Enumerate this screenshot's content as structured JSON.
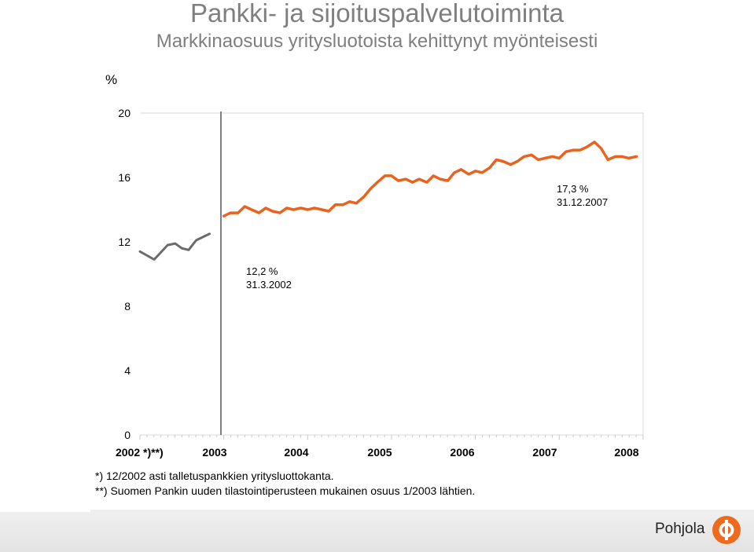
{
  "chart_data": {
    "type": "line",
    "title": "Pankki- ja sijoituspalvelutoiminta",
    "subtitle": "Markkinaosuus yritysluotoista kehittynyt myönteisesti",
    "ylabel": "%",
    "ylim": [
      0,
      20
    ],
    "yticks": [
      "0",
      "4",
      "8",
      "12",
      "16",
      "20"
    ],
    "xtick_labels": [
      "2002 *)**)",
      "2003",
      "2004",
      "2005",
      "2006",
      "2007",
      "2008"
    ],
    "xlim": [
      2002.0,
      2008.0
    ],
    "grid": false,
    "colors": {
      "series_2002": "#6b6b6b",
      "series_2003_2008": "#e8641e",
      "divider": "#7f7f7f"
    },
    "series": [
      {
        "x": [
          2002.0,
          2002.17,
          2002.33,
          2002.42,
          2002.5,
          2002.58,
          2002.67,
          2002.83
        ],
        "values": [
          11.4,
          10.9,
          11.8,
          11.9,
          11.6,
          11.5,
          12.1,
          12.5
        ]
      },
      {
        "x": [
          2003.0,
          2003.08,
          2003.17,
          2003.25,
          2003.33,
          2003.42,
          2003.5,
          2003.58,
          2003.67,
          2003.75,
          2003.83,
          2003.92,
          2004.0,
          2004.08,
          2004.17,
          2004.25,
          2004.33,
          2004.42,
          2004.5,
          2004.58,
          2004.67,
          2004.75,
          2004.83,
          2004.92,
          2005.0,
          2005.08,
          2005.17,
          2005.25,
          2005.33,
          2005.42,
          2005.5,
          2005.58,
          2005.67,
          2005.75,
          2005.83,
          2005.92,
          2006.0,
          2006.08,
          2006.17,
          2006.25,
          2006.33,
          2006.42,
          2006.5,
          2006.58,
          2006.67,
          2006.75,
          2006.83,
          2006.92,
          2007.0,
          2007.08,
          2007.17,
          2007.25,
          2007.33,
          2007.42,
          2007.5,
          2007.58,
          2007.67,
          2007.75,
          2007.83,
          2007.92
        ],
        "values": [
          13.6,
          13.8,
          13.8,
          14.2,
          14.0,
          13.8,
          14.1,
          13.9,
          13.8,
          14.1,
          14.0,
          14.1,
          14.0,
          14.1,
          14.0,
          13.9,
          14.3,
          14.3,
          14.5,
          14.4,
          14.8,
          15.3,
          15.7,
          16.1,
          16.1,
          15.8,
          15.9,
          15.7,
          15.9,
          15.7,
          16.1,
          15.9,
          15.8,
          16.3,
          16.5,
          16.2,
          16.4,
          16.3,
          16.6,
          17.1,
          17.0,
          16.8,
          17.0,
          17.3,
          17.4,
          17.1,
          17.2,
          17.3,
          17.2,
          17.6,
          17.7,
          17.7,
          17.9,
          18.2,
          17.8,
          17.1,
          17.3,
          17.3,
          17.2,
          17.3
        ]
      }
    ],
    "annotations": [
      {
        "line1": "12,2 %",
        "line2": "31.3.2002"
      },
      {
        "line1": "17,3 %",
        "line2": "31.12.2007"
      }
    ],
    "notes": [
      "*) 12/2002 asti talletuspankkien yritysluottokanta.",
      "**) Suomen Pankin uuden tilastointiperusteen mukainen osuus 1/2003 lähtien."
    ]
  },
  "footer": {
    "brand": "Pohjola",
    "logo_icon": "pohjola-op-logo-icon",
    "logo_color": "#ee6b1e"
  }
}
